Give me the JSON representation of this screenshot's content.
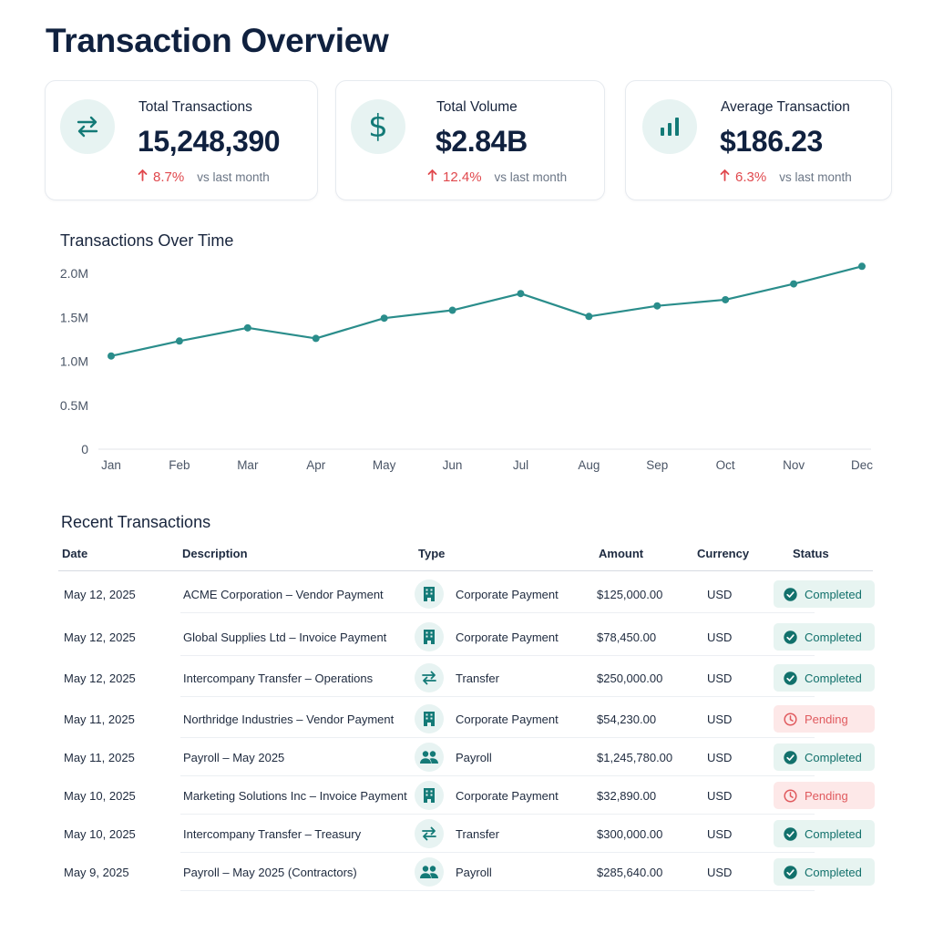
{
  "page": {
    "title": "Transaction Overview"
  },
  "colors": {
    "accent": "#137a77",
    "up_indicator": "#e0484d",
    "completed": "#11706b",
    "pending": "#e05a5e"
  },
  "kpis": [
    {
      "label": "Total Transactions",
      "value": "15,248,390",
      "change": "8.7%",
      "compare": "vs last month",
      "icon": "transfer-arrows-icon"
    },
    {
      "label": "Total Volume",
      "value": "$2.84B",
      "change": "12.4%",
      "compare": "vs last month",
      "icon": "dollar-icon"
    },
    {
      "label": "Average Transaction",
      "value": "$186.23",
      "change": "6.3%",
      "compare": "vs last month",
      "icon": "bar-chart-icon"
    }
  ],
  "chart_data": {
    "type": "line",
    "title": "Transactions Over Time",
    "categories": [
      "Jan",
      "Feb",
      "Mar",
      "Apr",
      "May",
      "Jun",
      "Jul",
      "Aug",
      "Sep",
      "Oct",
      "Nov",
      "Dec"
    ],
    "values": [
      1060000,
      1230000,
      1380000,
      1260000,
      1490000,
      1580000,
      1770000,
      1510000,
      1630000,
      1700000,
      1880000,
      2080000
    ],
    "y_ticks": [
      "0",
      "0.5M",
      "1.0M",
      "1.5M",
      "2.0M"
    ],
    "y_tick_values": [
      0,
      500000,
      1000000,
      1500000,
      2000000
    ],
    "ylim": [
      0,
      2000000
    ],
    "grid": false,
    "color": "#2a8d8b"
  },
  "recent": {
    "title": "Recent Transactions",
    "columns": [
      "Date",
      "Description",
      "Type",
      "Amount",
      "Currency",
      "Status"
    ],
    "rows": [
      {
        "date": "May 12, 2025",
        "description": "ACME Corporation – Vendor Payment",
        "type": "Corporate Payment",
        "type_icon": "building-icon",
        "amount": "$125,000.00",
        "currency": "USD",
        "status": "Completed",
        "status_icon": "check-circle-icon"
      },
      {
        "date": "May 12, 2025",
        "description": "Global Supplies Ltd – Invoice Payment",
        "type": "Corporate Payment",
        "type_icon": "building-icon",
        "amount": "$78,450.00",
        "currency": "USD",
        "status": "Completed",
        "status_icon": "check-circle-icon"
      },
      {
        "date": "May 12, 2025",
        "description": "Intercompany Transfer – Operations",
        "type": "Transfer",
        "type_icon": "transfer-arrows-icon",
        "amount": "$250,000.00",
        "currency": "USD",
        "status": "Completed",
        "status_icon": "check-circle-icon"
      },
      {
        "date": "May 11, 2025",
        "description": "Northridge Industries – Vendor Payment",
        "type": "Corporate Payment",
        "type_icon": "building-icon",
        "amount": "$54,230.00",
        "currency": "USD",
        "status": "Pending",
        "status_icon": "clock-icon"
      },
      {
        "date": "May 11, 2025",
        "description": "Payroll – May 2025",
        "type": "Payroll",
        "type_icon": "people-icon",
        "amount": "$1,245,780.00",
        "currency": "USD",
        "status": "Completed",
        "status_icon": "check-circle-icon"
      },
      {
        "date": "May 10, 2025",
        "description": "Marketing Solutions Inc – Invoice Payment",
        "type": "Corporate Payment",
        "type_icon": "building-icon",
        "amount": "$32,890.00",
        "currency": "USD",
        "status": "Pending",
        "status_icon": "clock-icon"
      },
      {
        "date": "May 10, 2025",
        "description": "Intercompany Transfer – Treasury",
        "type": "Transfer",
        "type_icon": "transfer-arrows-icon",
        "amount": "$300,000.00",
        "currency": "USD",
        "status": "Completed",
        "status_icon": "check-circle-icon"
      },
      {
        "date": "May 9, 2025",
        "description": "Payroll – May 2025 (Contractors)",
        "type": "Payroll",
        "type_icon": "people-icon",
        "amount": "$285,640.00",
        "currency": "USD",
        "status": "Completed",
        "status_icon": "check-circle-icon"
      }
    ]
  }
}
